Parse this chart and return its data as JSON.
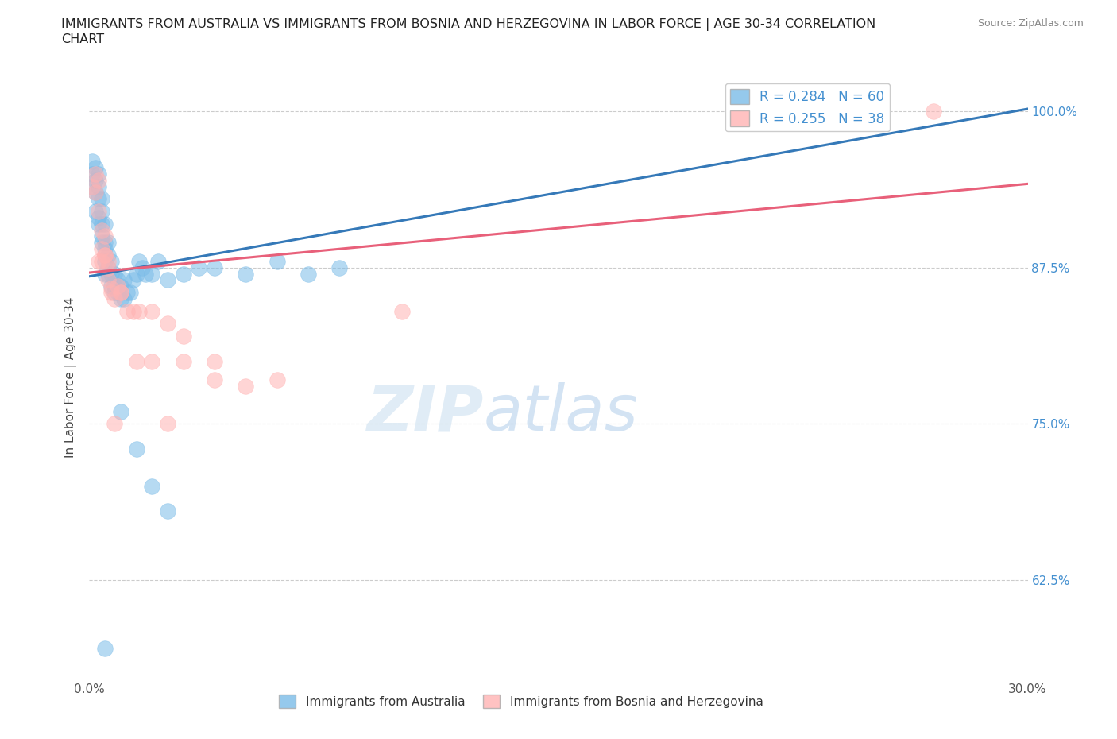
{
  "title": "IMMIGRANTS FROM AUSTRALIA VS IMMIGRANTS FROM BOSNIA AND HERZEGOVINA IN LABOR FORCE | AGE 30-34 CORRELATION\nCHART",
  "source": "Source: ZipAtlas.com",
  "ylabel": "In Labor Force | Age 30-34",
  "xlegend1": "Immigrants from Australia",
  "xlegend2": "Immigrants from Bosnia and Herzegovina",
  "R1": 0.284,
  "N1": 60,
  "R2": 0.255,
  "N2": 38,
  "xlim": [
    0.0,
    0.3
  ],
  "ylim": [
    0.545,
    1.03
  ],
  "yticks": [
    0.625,
    0.75,
    0.875,
    1.0
  ],
  "ytick_labels": [
    "62.5%",
    "75.0%",
    "87.5%",
    "100.0%"
  ],
  "xticks": [
    0.0,
    0.05,
    0.1,
    0.15,
    0.2,
    0.25,
    0.3
  ],
  "xtick_labels": [
    "0.0%",
    "",
    "",
    "",
    "",
    "",
    "30.0%"
  ],
  "color_australia": "#7bbce8",
  "color_bosnia": "#ffb3b3",
  "color_line_australia": "#3579b8",
  "color_line_bosnia": "#e8607a",
  "watermark_zip": "ZIP",
  "watermark_atlas": "atlas",
  "aus_trendline_x0": 0.0,
  "aus_trendline_y0": 0.868,
  "aus_trendline_x1": 0.3,
  "aus_trendline_y1": 1.002,
  "bos_trendline_x0": 0.0,
  "bos_trendline_y0": 0.871,
  "bos_trendline_x1": 0.3,
  "bos_trendline_y1": 0.942,
  "australia_x": [
    0.001,
    0.001,
    0.001,
    0.002,
    0.002,
    0.002,
    0.002,
    0.003,
    0.003,
    0.003,
    0.003,
    0.003,
    0.004,
    0.004,
    0.004,
    0.004,
    0.004,
    0.005,
    0.005,
    0.005,
    0.005,
    0.005,
    0.006,
    0.006,
    0.006,
    0.006,
    0.007,
    0.007,
    0.007,
    0.008,
    0.008,
    0.008,
    0.009,
    0.009,
    0.01,
    0.01,
    0.011,
    0.011,
    0.012,
    0.013,
    0.014,
    0.015,
    0.016,
    0.017,
    0.018,
    0.02,
    0.022,
    0.025,
    0.03,
    0.035,
    0.04,
    0.05,
    0.06,
    0.07,
    0.08,
    0.01,
    0.015,
    0.02,
    0.025,
    0.005
  ],
  "australia_y": [
    0.95,
    0.96,
    0.94,
    0.935,
    0.92,
    0.945,
    0.955,
    0.93,
    0.915,
    0.94,
    0.91,
    0.95,
    0.895,
    0.91,
    0.92,
    0.9,
    0.93,
    0.88,
    0.895,
    0.91,
    0.87,
    0.89,
    0.87,
    0.885,
    0.895,
    0.875,
    0.87,
    0.88,
    0.86,
    0.86,
    0.87,
    0.855,
    0.855,
    0.865,
    0.85,
    0.86,
    0.85,
    0.865,
    0.855,
    0.855,
    0.865,
    0.87,
    0.88,
    0.875,
    0.87,
    0.87,
    0.88,
    0.865,
    0.87,
    0.875,
    0.875,
    0.87,
    0.88,
    0.87,
    0.875,
    0.76,
    0.73,
    0.7,
    0.68,
    0.57
  ],
  "bosnia_x": [
    0.001,
    0.002,
    0.002,
    0.003,
    0.003,
    0.004,
    0.004,
    0.005,
    0.005,
    0.006,
    0.006,
    0.007,
    0.008,
    0.009,
    0.01,
    0.012,
    0.014,
    0.016,
    0.02,
    0.025,
    0.03,
    0.04,
    0.003,
    0.004,
    0.005,
    0.006,
    0.007,
    0.01,
    0.015,
    0.02,
    0.03,
    0.04,
    0.06,
    0.1,
    0.27,
    0.05,
    0.025,
    0.008
  ],
  "bosnia_y": [
    0.94,
    0.935,
    0.95,
    0.92,
    0.945,
    0.905,
    0.89,
    0.9,
    0.885,
    0.88,
    0.865,
    0.858,
    0.85,
    0.86,
    0.855,
    0.84,
    0.84,
    0.84,
    0.84,
    0.83,
    0.82,
    0.8,
    0.88,
    0.88,
    0.885,
    0.875,
    0.855,
    0.855,
    0.8,
    0.8,
    0.8,
    0.785,
    0.785,
    0.84,
    1.0,
    0.78,
    0.75,
    0.75
  ]
}
